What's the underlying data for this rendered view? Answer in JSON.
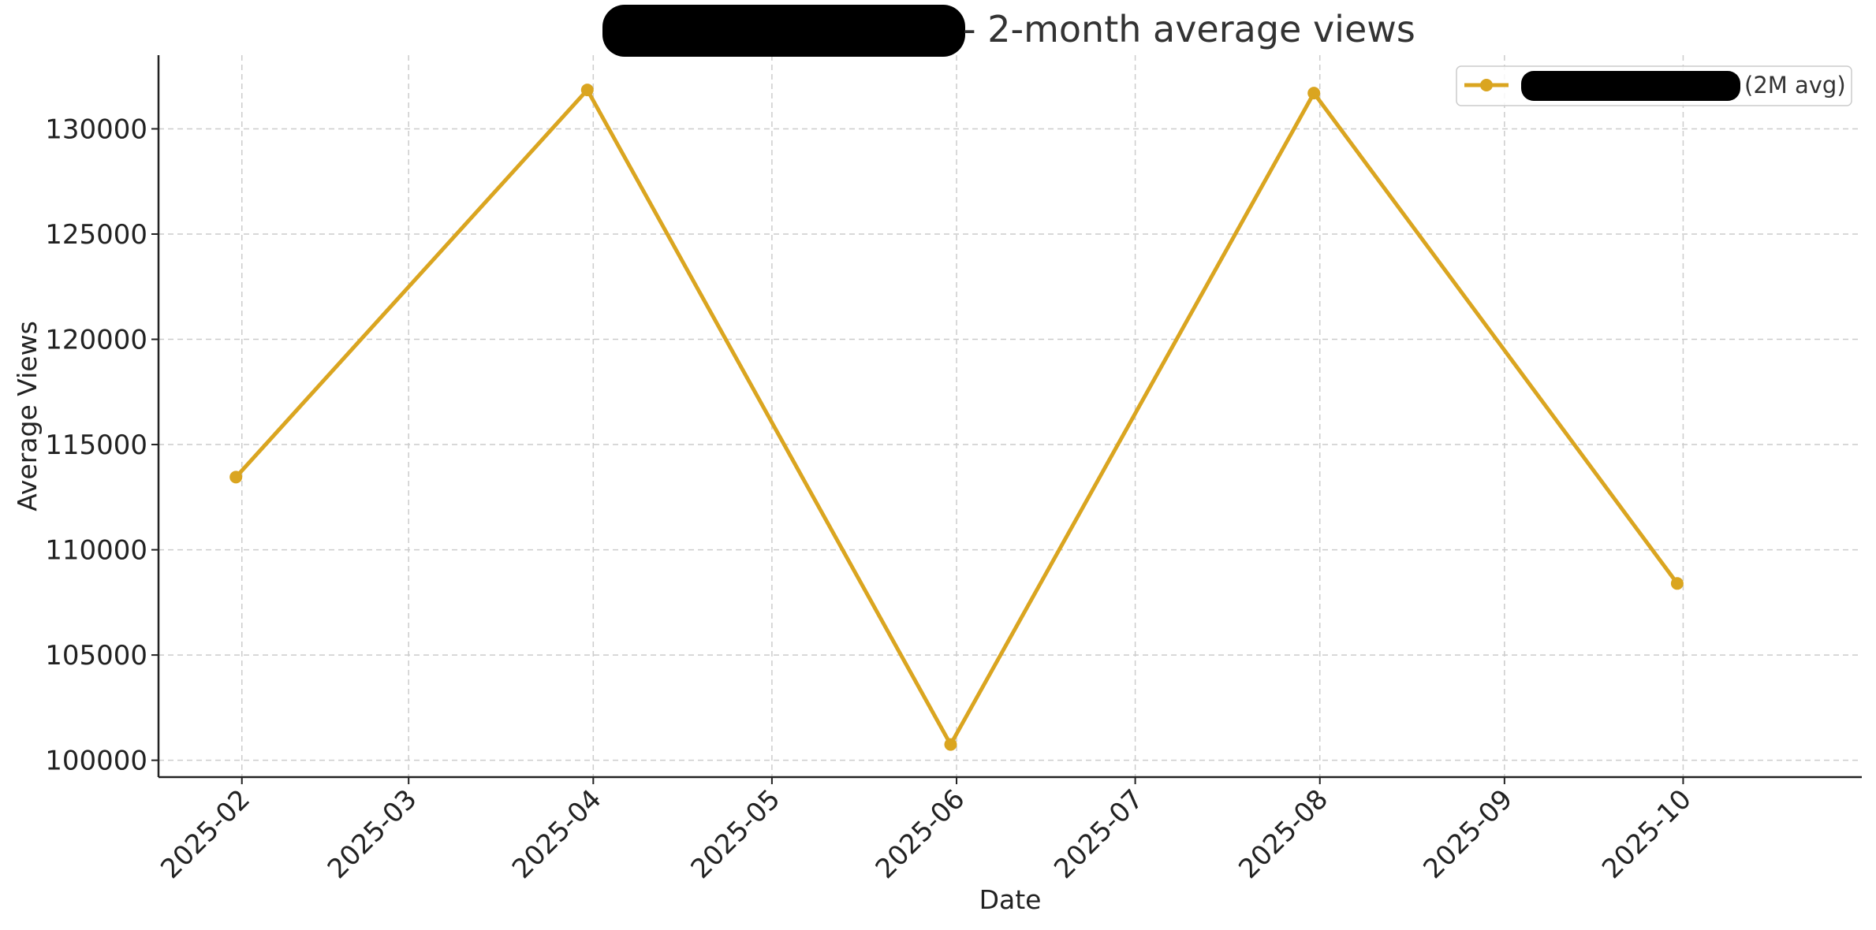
{
  "chart_data": {
    "type": "line",
    "title": "- 2-month average views",
    "title_redacted": true,
    "xlabel": "Date",
    "ylabel": "Average Views",
    "x_ticks": [
      "2025-02",
      "2025-03",
      "2025-04",
      "2025-05",
      "2025-06",
      "2025-07",
      "2025-08",
      "2025-09",
      "2025-10"
    ],
    "y_ticks": [
      100000,
      105000,
      110000,
      115000,
      120000,
      125000,
      130000
    ],
    "ylim": [
      99200,
      133500
    ],
    "xlim": [
      "2025-01-18",
      "2025-10-31"
    ],
    "grid": true,
    "legend_position": "top-right",
    "series": [
      {
        "name": "(2M avg)",
        "name_redacted": true,
        "color": "#DAA520",
        "marker": "circle",
        "x": [
          "2025-01-31",
          "2025-03-31",
          "2025-05-31",
          "2025-07-31",
          "2025-09-30"
        ],
        "values": [
          113450,
          131850,
          100750,
          131700,
          108400
        ]
      }
    ]
  }
}
